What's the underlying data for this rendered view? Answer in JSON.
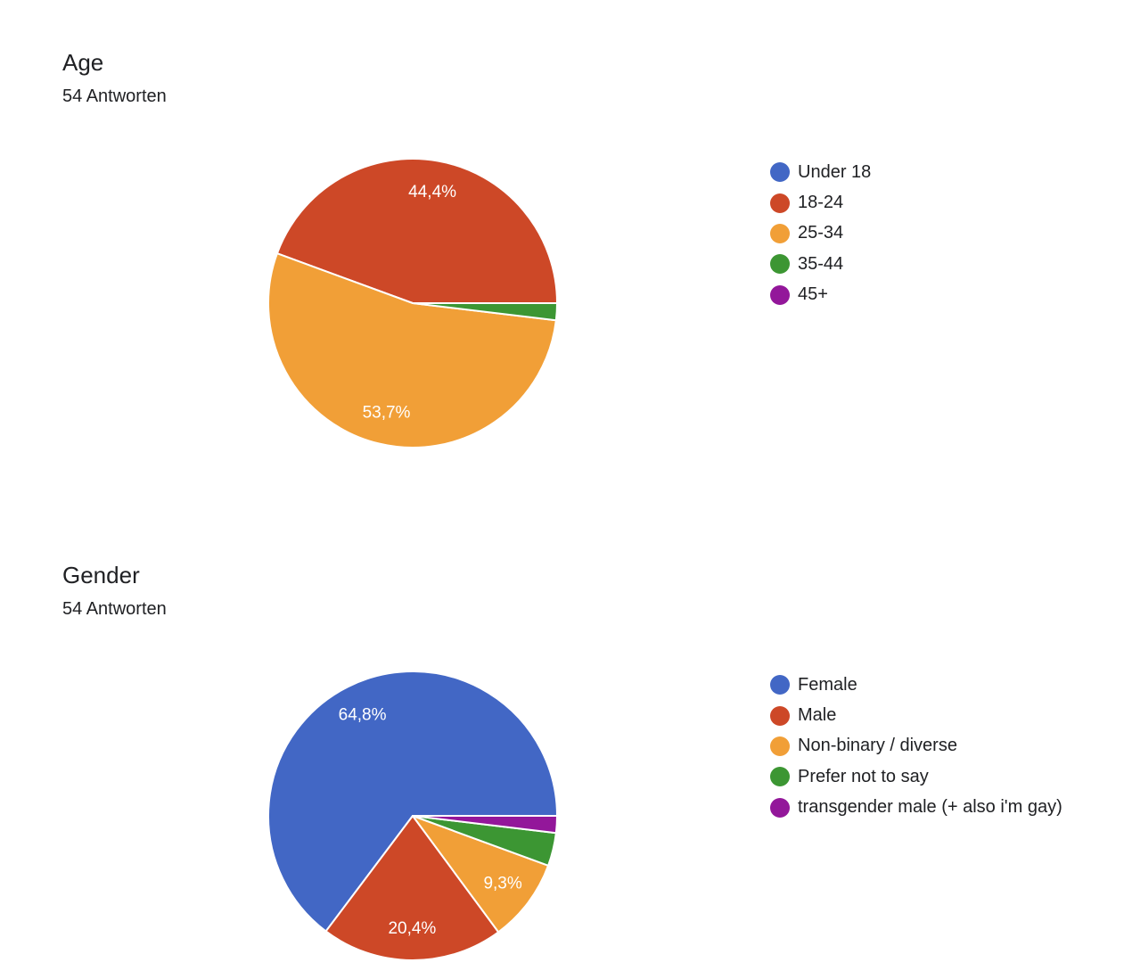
{
  "chart_data": [
    {
      "type": "pie",
      "title": "Age",
      "subtitle": "54 Antworten",
      "categories": [
        "Under 18",
        "18-24",
        "25-34",
        "35-44",
        "45+"
      ],
      "values": [
        0,
        44.4,
        53.7,
        1.9,
        0
      ],
      "labels": [
        "",
        "44,4%",
        "53,7%",
        "",
        ""
      ],
      "colors": [
        "#4267c5",
        "#cd4827",
        "#f19f37",
        "#3c9633",
        "#93179a"
      ],
      "legend": "right"
    },
    {
      "type": "pie",
      "title": "Gender",
      "subtitle": "54 Antworten",
      "categories": [
        "Female",
        "Male",
        "Non-binary / diverse",
        "Prefer not to say",
        "transgender male (+ also i'm gay)"
      ],
      "values": [
        64.8,
        20.4,
        9.3,
        3.7,
        1.9
      ],
      "labels": [
        "64,8%",
        "20,4%",
        "9,3%",
        "",
        ""
      ],
      "colors": [
        "#4267c5",
        "#cd4827",
        "#f19f37",
        "#3c9633",
        "#93179a"
      ],
      "legend": "right"
    }
  ]
}
